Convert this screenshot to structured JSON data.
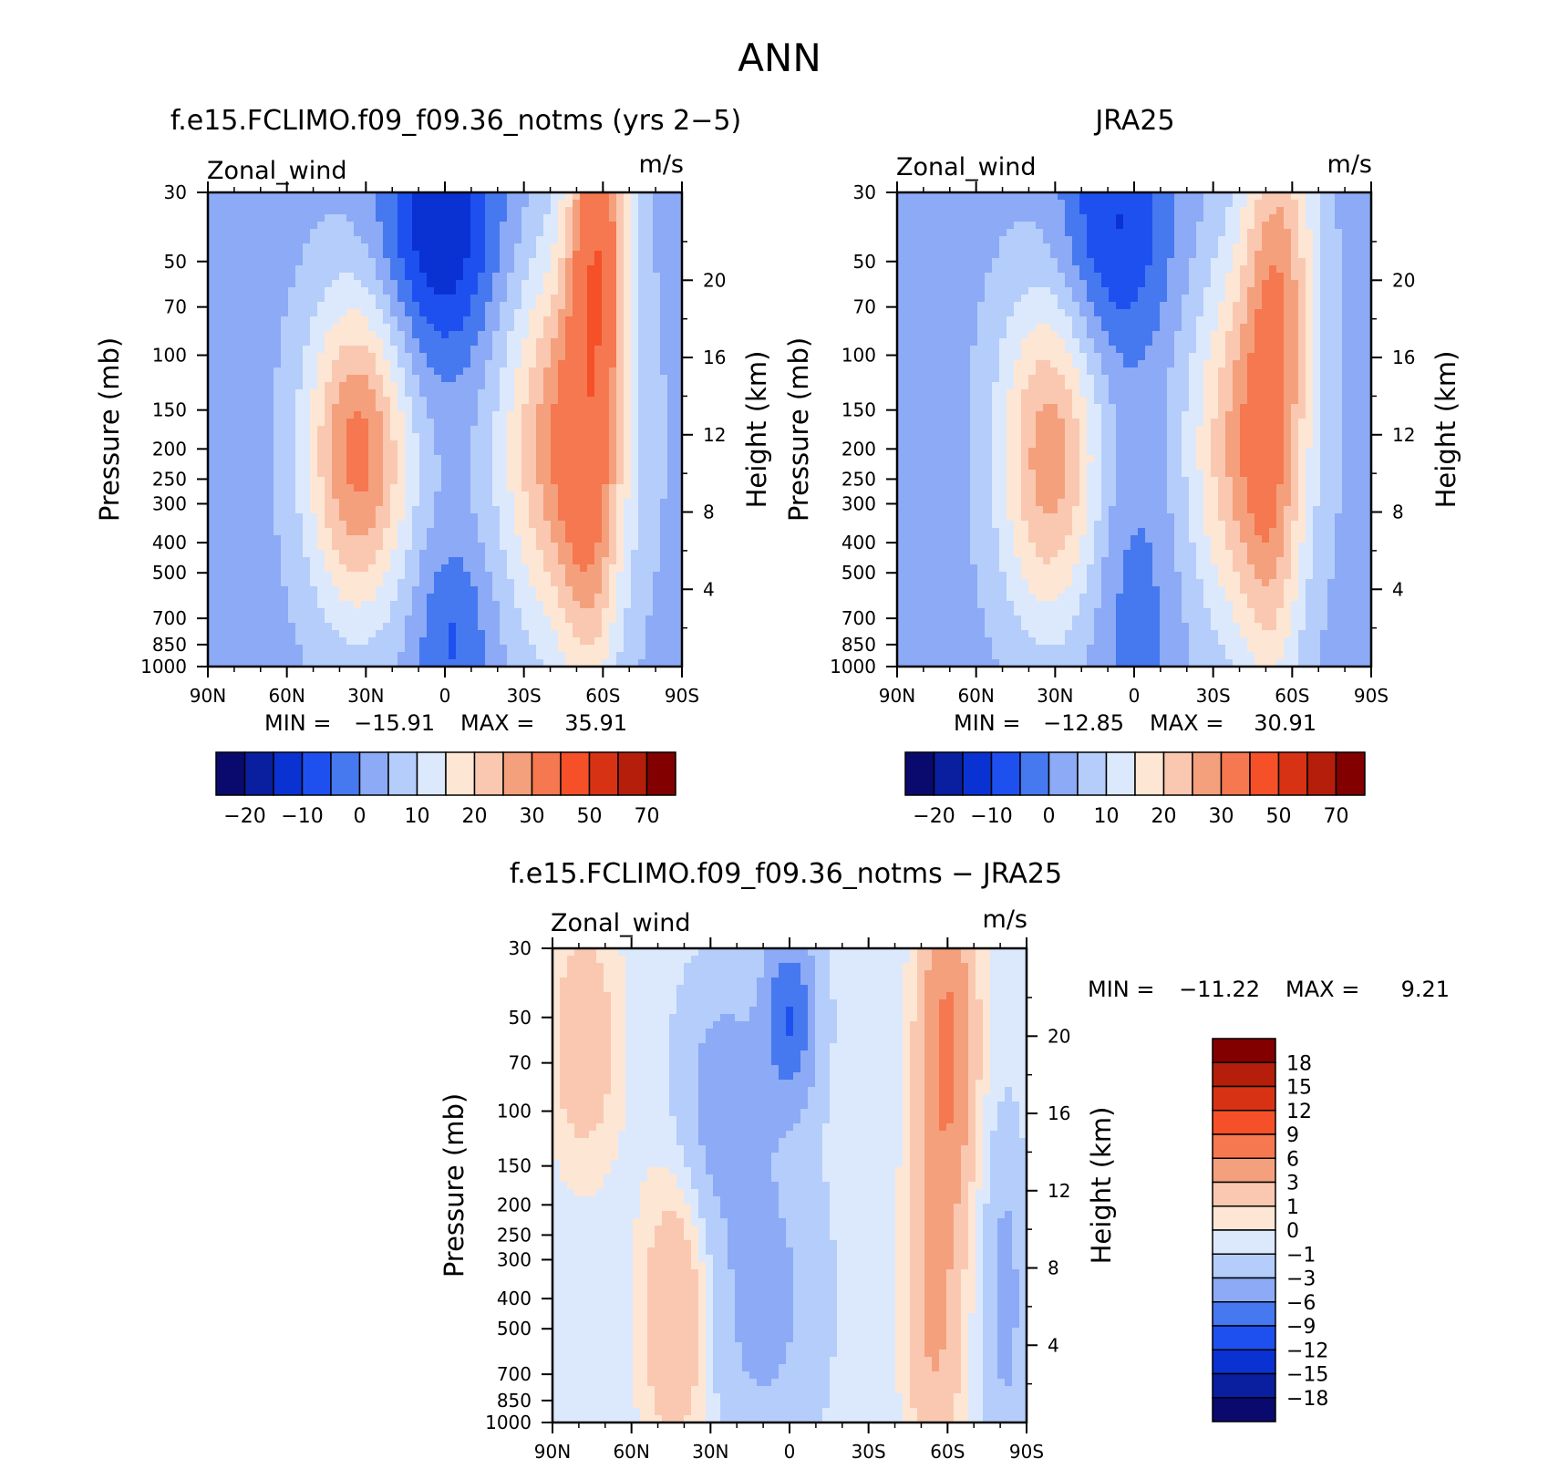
{
  "figure_title": "ANN",
  "colorbar_top": {
    "colors": [
      "#0a0a6e",
      "#0a1ea0",
      "#0a32d2",
      "#1e50f0",
      "#4678f0",
      "#8caaf5",
      "#b4cdfa",
      "#dce9fc",
      "#fde6d4",
      "#fac8b0",
      "#f5a07c",
      "#f57850",
      "#f55028",
      "#d73214",
      "#b41e0a",
      "#820000"
    ],
    "labels": [
      "−20",
      "−10",
      "0",
      "10",
      "20",
      "30",
      "50",
      "70"
    ]
  },
  "colorbar_diff": {
    "colors": [
      "#820000",
      "#b41e0a",
      "#d73214",
      "#f55028",
      "#f57850",
      "#f5a07c",
      "#fac8b0",
      "#fde6d4",
      "#dce9fc",
      "#b4cdfa",
      "#8caaf5",
      "#4678f0",
      "#1e50f0",
      "#0a32d2",
      "#0a1ea0",
      "#0a0a6e"
    ],
    "labels": [
      "18",
      "15",
      "12",
      "9",
      "6",
      "3",
      "1",
      "0",
      "−1",
      "−3",
      "−6",
      "−9",
      "−12",
      "−15",
      "−18"
    ]
  },
  "chart_data": [
    {
      "type": "heatmap",
      "title": "f.e15.FCLIMO.f09_f09.36_notms (yrs 2−5)",
      "left_label": "Zonal_wind",
      "units": "m/s",
      "ylabel": "Pressure (mb)",
      "y2label": "Height (km)",
      "x_ticks": [
        "90N",
        "60N",
        "30N",
        "0",
        "30S",
        "60S",
        "90S"
      ],
      "y_ticks": [
        "30",
        "50",
        "70",
        "100",
        "150",
        "200",
        "250",
        "300",
        "400",
        "500",
        "700",
        "850",
        "1000"
      ],
      "y2_ticks": [
        "20",
        "16",
        "12",
        "8",
        "4"
      ],
      "min_label": "MIN =",
      "min": "−15.91",
      "max_label": "MAX =",
      "max": "35.91",
      "field": {
        "lat_range": [
          90,
          -90
        ],
        "pressure_range": [
          30,
          1000
        ],
        "components": [
          {
            "lat": 33,
            "p": 205,
            "amp": 29,
            "slat": 14,
            "slogp": 0.85
          },
          {
            "lat": -45,
            "p": 190,
            "amp": 26,
            "slat": 17,
            "slogp": 1.0
          },
          {
            "lat": -58,
            "p": 40,
            "amp": 30,
            "slat": 8,
            "slogp": 0.95
          },
          {
            "lat": -55,
            "p": 500,
            "amp": 12,
            "slat": 8,
            "slogp": 0.9
          },
          {
            "lat": 2,
            "p": 40,
            "amp": -18,
            "slat": 16,
            "slogp": 0.7
          },
          {
            "lat": -3,
            "p": 800,
            "amp": -9,
            "slat": 10,
            "slogp": 0.5
          }
        ],
        "base": 3
      }
    },
    {
      "type": "heatmap",
      "title": "JRA25",
      "left_label": "Zonal_wind",
      "units": "m/s",
      "ylabel": "Pressure (mb)",
      "y2label": "Height (km)",
      "x_ticks": [
        "90N",
        "60N",
        "30N",
        "0",
        "30S",
        "60S",
        "90S"
      ],
      "y_ticks": [
        "30",
        "50",
        "70",
        "100",
        "150",
        "200",
        "250",
        "300",
        "400",
        "500",
        "700",
        "850",
        "1000"
      ],
      "y2_ticks": [
        "20",
        "16",
        "12",
        "8",
        "4"
      ],
      "min_label": "MIN =",
      "min": "−12.85",
      "max_label": "MAX =",
      "max": "30.91",
      "field": {
        "lat_range": [
          90,
          -90
        ],
        "pressure_range": [
          30,
          1000
        ],
        "components": [
          {
            "lat": 32,
            "p": 210,
            "amp": 25,
            "slat": 14,
            "slogp": 0.9
          },
          {
            "lat": -42,
            "p": 200,
            "amp": 22,
            "slat": 16,
            "slogp": 1.0
          },
          {
            "lat": -55,
            "p": 50,
            "amp": 20,
            "slat": 10,
            "slogp": 1.0
          },
          {
            "lat": -52,
            "p": 500,
            "amp": 10,
            "slat": 8,
            "slogp": 0.9
          },
          {
            "lat": 8,
            "p": 40,
            "amp": -14,
            "slat": 15,
            "slogp": 0.7
          },
          {
            "lat": 0,
            "p": 600,
            "amp": -6,
            "slat": 12,
            "slogp": 0.8
          }
        ],
        "base": 3
      }
    },
    {
      "type": "heatmap",
      "title": "f.e15.FCLIMO.f09_f09.36_notms − JRA25",
      "left_label": "Zonal_wind",
      "units": "m/s",
      "ylabel": "Pressure (mb)",
      "y2label": "Height (km)",
      "x_ticks": [
        "90N",
        "60N",
        "30N",
        "0",
        "30S",
        "60S",
        "90S"
      ],
      "y_ticks": [
        "30",
        "50",
        "70",
        "100",
        "150",
        "200",
        "250",
        "300",
        "400",
        "500",
        "700",
        "850",
        "1000"
      ],
      "y2_ticks": [
        "20",
        "16",
        "12",
        "8",
        "4"
      ],
      "min_label": "MIN =",
      "min": "−11.22",
      "max_label": "MAX =",
      "max": "9.21",
      "field": {
        "lat_range": [
          90,
          -90
        ],
        "pressure_range": [
          30,
          1000
        ],
        "components": [
          {
            "lat": 78,
            "p": 60,
            "amp": 3,
            "slat": 9,
            "slogp": 0.6
          },
          {
            "lat": 43,
            "p": 450,
            "amp": 3.5,
            "slat": 9,
            "slogp": 0.7
          },
          {
            "lat": -60,
            "p": 60,
            "amp": 7,
            "slat": 7,
            "slogp": 0.8
          },
          {
            "lat": -55,
            "p": 400,
            "amp": 4,
            "slat": 7,
            "slogp": 1.0
          },
          {
            "lat": 0,
            "p": 50,
            "amp": -8.5,
            "slat": 7,
            "slogp": 0.45
          },
          {
            "lat": 25,
            "p": 90,
            "amp": -4,
            "slat": 11,
            "slogp": 0.6
          },
          {
            "lat": 10,
            "p": 400,
            "amp": -3.5,
            "slat": 14,
            "slogp": 0.8
          },
          {
            "lat": -82,
            "p": 400,
            "amp": -3.5,
            "slat": 5,
            "slogp": 0.8
          }
        ],
        "base": -0.5
      }
    }
  ]
}
